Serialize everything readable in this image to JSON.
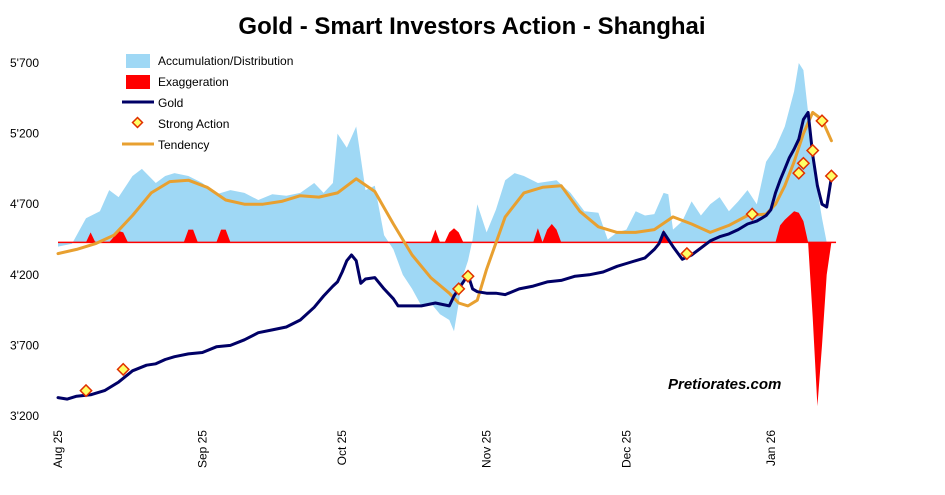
{
  "chart_data": {
    "type": "line",
    "title": "Gold - Smart Investors Action - Shanghai",
    "watermark": "Pretiorates.com",
    "y_ticks": [
      "5'700",
      "5'200",
      "4'700",
      "4'200",
      "3'700",
      "3'200"
    ],
    "y_tick_values": [
      5700,
      5200,
      4700,
      4200,
      3700,
      3200
    ],
    "ylim": [
      3200,
      5700
    ],
    "x_ticks": [
      "Aug 25",
      "Sep 25",
      "Oct 25",
      "Nov 25",
      "Dec 25",
      "Jan 26"
    ],
    "x_tick_positions": [
      0,
      31,
      61,
      92,
      122,
      153
    ],
    "xlim": [
      0,
      170
    ],
    "baseline": 4430,
    "legend": [
      {
        "label": "Accumulation/Distribution",
        "type": "area",
        "color": "#9fd8f5"
      },
      {
        "label": "Exaggeration",
        "type": "area",
        "color": "#ff0000"
      },
      {
        "label": "Gold",
        "type": "line",
        "color": "#000066"
      },
      {
        "label": "Strong Action",
        "type": "marker",
        "color": "#ffff66",
        "stroke": "#e03000"
      },
      {
        "label": "Tendency",
        "type": "line",
        "color": "#e8a030"
      }
    ],
    "colors": {
      "accumulation": "#9fd8f5",
      "exaggeration": "#ff0000",
      "gold": "#000066",
      "tendency": "#e8a030",
      "baseline": "#ff0000",
      "marker_fill": "#ffff66",
      "marker_stroke": "#e03000"
    },
    "series": [
      {
        "name": "Gold",
        "x": [
          0,
          2,
          4,
          7,
          10,
          13,
          16,
          19,
          21,
          23,
          25,
          28,
          31,
          34,
          37,
          40,
          43,
          46,
          49,
          52,
          55,
          57,
          59,
          60,
          61,
          62,
          63,
          64,
          65,
          66,
          68,
          70,
          72,
          73,
          75,
          78,
          81,
          84,
          85,
          86,
          87,
          88,
          89,
          90,
          92,
          94,
          96,
          99,
          102,
          105,
          108,
          111,
          114,
          117,
          120,
          122,
          124,
          126,
          128,
          129,
          130,
          132,
          134,
          136,
          138,
          140,
          142,
          144,
          146,
          148,
          150,
          151,
          152,
          153,
          154,
          155,
          156,
          157,
          158,
          159,
          160,
          161,
          162,
          163,
          164,
          165,
          166
        ],
        "values": [
          3330,
          3320,
          3340,
          3350,
          3380,
          3440,
          3520,
          3560,
          3570,
          3600,
          3620,
          3640,
          3650,
          3690,
          3700,
          3740,
          3790,
          3810,
          3830,
          3880,
          3970,
          4050,
          4120,
          4150,
          4220,
          4300,
          4340,
          4300,
          4140,
          4170,
          4180,
          4100,
          4030,
          3980,
          3980,
          3980,
          4000,
          3980,
          4050,
          4100,
          4150,
          4200,
          4100,
          4080,
          4070,
          4070,
          4060,
          4100,
          4120,
          4150,
          4160,
          4190,
          4200,
          4220,
          4260,
          4280,
          4300,
          4320,
          4380,
          4420,
          4500,
          4400,
          4310,
          4340,
          4390,
          4440,
          4470,
          4490,
          4520,
          4560,
          4580,
          4600,
          4620,
          4660,
          4780,
          4870,
          4950,
          5030,
          5090,
          5160,
          5300,
          5350,
          5050,
          4830,
          4700,
          4680,
          4890
        ]
      },
      {
        "name": "Tendency",
        "x": [
          0,
          4,
          8,
          12,
          16,
          20,
          24,
          28,
          32,
          36,
          40,
          44,
          48,
          52,
          56,
          60,
          64,
          68,
          72,
          76,
          80,
          84,
          86,
          88,
          90,
          92,
          96,
          100,
          104,
          108,
          112,
          116,
          120,
          124,
          128,
          132,
          136,
          140,
          144,
          148,
          152,
          154,
          156,
          158,
          160,
          162,
          164,
          166
        ],
        "values": [
          4350,
          4380,
          4420,
          4480,
          4620,
          4780,
          4860,
          4870,
          4820,
          4730,
          4700,
          4700,
          4720,
          4760,
          4750,
          4780,
          4880,
          4790,
          4560,
          4340,
          4180,
          4070,
          4000,
          3980,
          4020,
          4240,
          4610,
          4780,
          4820,
          4830,
          4650,
          4540,
          4500,
          4500,
          4520,
          4610,
          4560,
          4500,
          4550,
          4620,
          4630,
          4700,
          4830,
          5000,
          5200,
          5350,
          5300,
          5150
        ]
      },
      {
        "name": "Accumulation/Distribution",
        "x": [
          0,
          3,
          6,
          9,
          11,
          13,
          16,
          18,
          21,
          23,
          25,
          28,
          31,
          34,
          37,
          40,
          43,
          46,
          49,
          52,
          55,
          57,
          59,
          60,
          62,
          64,
          66,
          68,
          70,
          72,
          74,
          76,
          78,
          80,
          82,
          84,
          85,
          86,
          87,
          88,
          89,
          90,
          92,
          94,
          96,
          98,
          100,
          103,
          105,
          107,
          110,
          113,
          116,
          118,
          120,
          122,
          124,
          126,
          128,
          130,
          131,
          132,
          134,
          136,
          138,
          140,
          142,
          144,
          146,
          148,
          150,
          152,
          154,
          156,
          158,
          159,
          160,
          161,
          162,
          163,
          164,
          165,
          166
        ],
        "values": [
          4400,
          4420,
          4600,
          4650,
          4800,
          4750,
          4900,
          4950,
          4850,
          4900,
          4920,
          4900,
          4850,
          4770,
          4800,
          4780,
          4730,
          4770,
          4760,
          4780,
          4850,
          4780,
          4850,
          5200,
          5100,
          5250,
          4800,
          4830,
          4480,
          4380,
          4200,
          4100,
          3980,
          4000,
          3920,
          3880,
          3800,
          4000,
          4200,
          4300,
          4450,
          4700,
          4500,
          4660,
          4870,
          4920,
          4900,
          4850,
          4860,
          4870,
          4780,
          4650,
          4640,
          4450,
          4500,
          4520,
          4650,
          4620,
          4630,
          4780,
          4770,
          4520,
          4580,
          4720,
          4620,
          4700,
          4750,
          4650,
          4720,
          4800,
          4700,
          5000,
          5100,
          5250,
          5500,
          5700,
          5650,
          5350,
          5000,
          4800,
          4600,
          4430,
          4430
        ]
      },
      {
        "name": "Exaggeration",
        "x": [
          0,
          6,
          7,
          8,
          9,
          11,
          12,
          13,
          14,
          15,
          27,
          28,
          29,
          30,
          34,
          35,
          36,
          37,
          80,
          81,
          82,
          83,
          84,
          85,
          86,
          87,
          102,
          103,
          104,
          105,
          106,
          107,
          108,
          129,
          130,
          131,
          154,
          155,
          156,
          157,
          158,
          159,
          160,
          161,
          162,
          163,
          164,
          165,
          166
        ],
        "values": [
          4430,
          4430,
          4500,
          4430,
          4430,
          4430,
          4470,
          4510,
          4500,
          4430,
          4430,
          4520,
          4520,
          4430,
          4430,
          4520,
          4520,
          4430,
          4430,
          4520,
          4430,
          4430,
          4500,
          4530,
          4500,
          4430,
          4430,
          4530,
          4430,
          4520,
          4560,
          4520,
          4430,
          4430,
          4520,
          4430,
          4430,
          4550,
          4590,
          4620,
          4650,
          4640,
          4580,
          4430,
          3900,
          3270,
          3700,
          4200,
          4430
        ]
      },
      {
        "name": "Strong Action",
        "type": "scatter",
        "x": [
          6,
          14,
          86,
          88,
          135,
          149,
          159,
          160,
          162,
          164,
          166
        ],
        "values": [
          3380,
          3530,
          4100,
          4190,
          4350,
          4630,
          4920,
          4990,
          5080,
          5290,
          4900
        ]
      }
    ]
  }
}
